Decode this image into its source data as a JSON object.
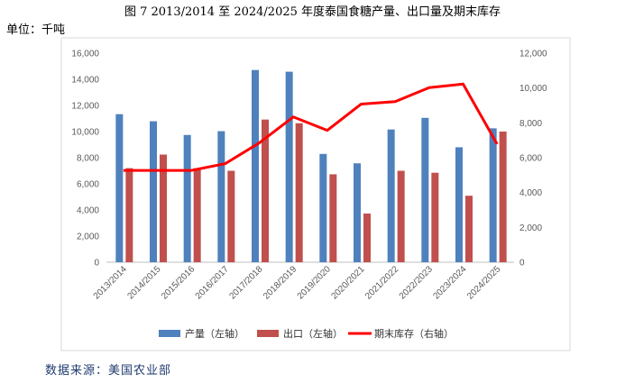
{
  "header": {
    "title": "图 7    2013/2014 至 2024/2025 年度泰国食糖产量、出口量及期末库存",
    "unit": "单位：千吨"
  },
  "footer": {
    "source": "数据来源：美国农业部"
  },
  "chart_data": {
    "type": "bar",
    "categories": [
      "2013/2014",
      "2014/2015",
      "2015/2016",
      "2016/2017",
      "2017/2018",
      "2018/2019",
      "2019/2020",
      "2020/2021",
      "2021/2022",
      "2022/2023",
      "2023/2024",
      "2024/2025"
    ],
    "series": [
      {
        "name": "产量（左轴）",
        "type": "bar",
        "axis": "left",
        "color": "#4f81bd",
        "values": [
          11330,
          10790,
          9740,
          10030,
          14710,
          14580,
          8290,
          7570,
          10160,
          11050,
          8800,
          10250
        ]
      },
      {
        "name": "出口（左轴）",
        "type": "bar",
        "axis": "left",
        "color": "#c0504d",
        "values": [
          7200,
          8240,
          7200,
          7000,
          10920,
          10640,
          6730,
          3730,
          7000,
          6850,
          5090,
          10000
        ]
      },
      {
        "name": "期末库存（右轴）",
        "type": "line",
        "axis": "right",
        "color": "#ff0000",
        "values": [
          5270,
          5270,
          5270,
          5660,
          6850,
          8340,
          7570,
          9080,
          9220,
          10020,
          10230,
          6780
        ]
      }
    ],
    "y_left": {
      "min": 0,
      "max": 16000,
      "ticks": [
        "0",
        "2,000",
        "4,000",
        "6,000",
        "8,000",
        "10,000",
        "12,000",
        "14,000",
        "16,000"
      ]
    },
    "y_right": {
      "min": 0,
      "max": 12000,
      "ticks": [
        "0",
        "2,000",
        "4,000",
        "6,000",
        "8,000",
        "10,000",
        "12,000"
      ]
    },
    "grid": false,
    "legend_position": "bottom"
  }
}
